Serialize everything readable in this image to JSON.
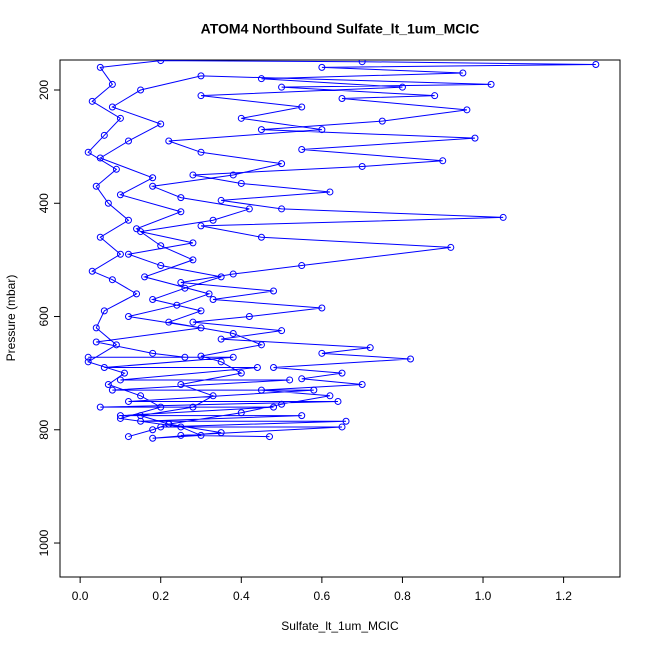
{
  "chart_data": {
    "type": "line",
    "title": "ATOM4 Northbound Sulfate_lt_1um_MCIC",
    "x_label": "Sulfate_lt_1um_MCIC",
    "y_label": "Pressure (mbar)",
    "xlim": [
      -0.05,
      1.34
    ],
    "ylim": [
      1060,
      147
    ],
    "xticks": [
      {
        "value": 0,
        "label": "0.0"
      },
      {
        "value": 0.2,
        "label": "0.2"
      },
      {
        "value": 0.4,
        "label": "0.4"
      },
      {
        "value": 0.6,
        "label": "0.6"
      },
      {
        "value": 0.8,
        "label": "0.8"
      },
      {
        "value": 1.0,
        "label": "1.0"
      },
      {
        "value": 1.2,
        "label": "1.2"
      }
    ],
    "yticks": [
      200,
      400,
      600,
      800,
      1000
    ],
    "markers": true,
    "series": [
      {
        "color": "#0000ff",
        "x": [
          0.12,
          0.18,
          0.22,
          0.15,
          0.28,
          0.33,
          0.25,
          0.4,
          0.35,
          0.3,
          0.45,
          0.38,
          0.22,
          0.3,
          0.18,
          0.26,
          0.35,
          0.2,
          0.12,
          0.28,
          0.15,
          0.33,
          0.42,
          0.25,
          0.18,
          0.38,
          0.5,
          0.3,
          0.22,
          0.6,
          0.4,
          0.55,
          0.3,
          0.8,
          0.45,
          0.95,
          0.6,
          1.28,
          0.7,
          0.2,
          0.05,
          0.08,
          0.03,
          0.1,
          0.06,
          0.02,
          0.09,
          0.04,
          0.07,
          0.12,
          0.05,
          0.1,
          0.03,
          0.08,
          0.14,
          0.06,
          0.04,
          0.09,
          0.02,
          0.11,
          0.07,
          0.15,
          0.2,
          0.1,
          0.25,
          0.3,
          0.18,
          0.35,
          0.22,
          0.4,
          0.5,
          0.62,
          0.45,
          0.7,
          0.55,
          0.65,
          0.48,
          0.82,
          0.6,
          0.72,
          0.35,
          0.5,
          0.28,
          0.42,
          0.6,
          0.33,
          0.48,
          0.25,
          0.38,
          0.55,
          0.92,
          0.45,
          0.3,
          1.05,
          0.5,
          0.35,
          0.62,
          0.4,
          0.28,
          0.7,
          0.9,
          0.55,
          0.98,
          0.45,
          0.75,
          0.96,
          0.65,
          0.88,
          0.5,
          1.02,
          0.3,
          0.15,
          0.08,
          0.2,
          0.12,
          0.05,
          0.18,
          0.1,
          0.25,
          0.14,
          0.2,
          0.28,
          0.16,
          0.32,
          0.24,
          0.12,
          0.3,
          0.04,
          0.18,
          0.26,
          0.02,
          0.38,
          0.06,
          0.44,
          0.1,
          0.52,
          0.08,
          0.58,
          0.12,
          0.64,
          0.05,
          0.48,
          0.1,
          0.55,
          0.15,
          0.66,
          0.2,
          0.65,
          0.25,
          0.47
        ],
        "values": [
          812,
          800,
          790,
          775,
          760,
          740,
          720,
          700,
          680,
          670,
          650,
          630,
          610,
          590,
          570,
          550,
          530,
          510,
          490,
          470,
          450,
          430,
          410,
          390,
          370,
          350,
          330,
          310,
          290,
          270,
          250,
          230,
          210,
          195,
          180,
          170,
          160,
          155,
          150,
          148,
          160,
          190,
          220,
          250,
          280,
          310,
          340,
          370,
          400,
          430,
          460,
          490,
          520,
          535,
          560,
          590,
          620,
          650,
          680,
          700,
          720,
          740,
          760,
          780,
          795,
          810,
          815,
          805,
          790,
          770,
          755,
          740,
          730,
          720,
          710,
          700,
          690,
          675,
          665,
          655,
          640,
          625,
          610,
          600,
          585,
          570,
          555,
          540,
          525,
          510,
          478,
          460,
          440,
          425,
          410,
          395,
          380,
          365,
          350,
          335,
          325,
          305,
          285,
          270,
          255,
          235,
          215,
          210,
          195,
          190,
          175,
          200,
          230,
          260,
          290,
          320,
          355,
          385,
          415,
          445,
          475,
          500,
          530,
          560,
          580,
          600,
          620,
          645,
          665,
          672,
          672,
          672,
          690,
          690,
          712,
          712,
          730,
          730,
          750,
          750,
          760,
          760,
          775,
          775,
          785,
          785,
          795,
          795,
          810,
          812
        ]
      }
    ]
  }
}
